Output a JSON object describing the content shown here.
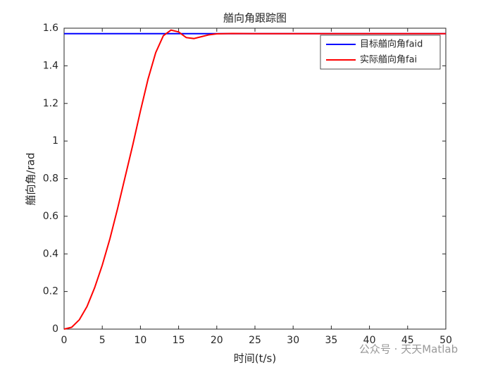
{
  "chart_data": {
    "type": "line",
    "title": "艏向角跟踪图",
    "xlabel": "时间(t/s)",
    "ylabel": "艏向角/rad",
    "x": [
      0,
      1,
      2,
      3,
      4,
      5,
      6,
      7,
      8,
      9,
      10,
      11,
      12,
      13,
      14,
      15,
      16,
      17,
      18,
      19,
      20,
      22,
      25,
      30,
      35,
      40,
      45,
      50
    ],
    "series": [
      {
        "name": "目标艏向角faid",
        "color": "#0000ff",
        "values": [
          1.5708,
          1.5708,
          1.5708,
          1.5708,
          1.5708,
          1.5708,
          1.5708,
          1.5708,
          1.5708,
          1.5708,
          1.5708,
          1.5708,
          1.5708,
          1.5708,
          1.5708,
          1.5708,
          1.5708,
          1.5708,
          1.5708,
          1.5708,
          1.5708,
          1.5708,
          1.5708,
          1.5708,
          1.5708,
          1.5708,
          1.5708,
          1.5708
        ]
      },
      {
        "name": "实际艏向角fai",
        "color": "#ff0000",
        "values": [
          0,
          0.01,
          0.05,
          0.12,
          0.22,
          0.34,
          0.48,
          0.64,
          0.81,
          0.98,
          1.16,
          1.33,
          1.47,
          1.56,
          1.59,
          1.58,
          1.55,
          1.545,
          1.555,
          1.565,
          1.57,
          1.572,
          1.571,
          1.5708,
          1.5708,
          1.5708,
          1.5708,
          1.5708
        ]
      }
    ],
    "xlim": [
      0,
      50
    ],
    "xticks": [
      0,
      5,
      10,
      15,
      20,
      25,
      30,
      35,
      40,
      45,
      50
    ],
    "ylim": [
      0,
      1.6
    ],
    "yticks": [
      0,
      0.2,
      0.4,
      0.6,
      0.8,
      1,
      1.2,
      1.4,
      1.6
    ],
    "grid": false,
    "legend": "northeast",
    "watermark": "公众号 · 天天Matlab"
  }
}
